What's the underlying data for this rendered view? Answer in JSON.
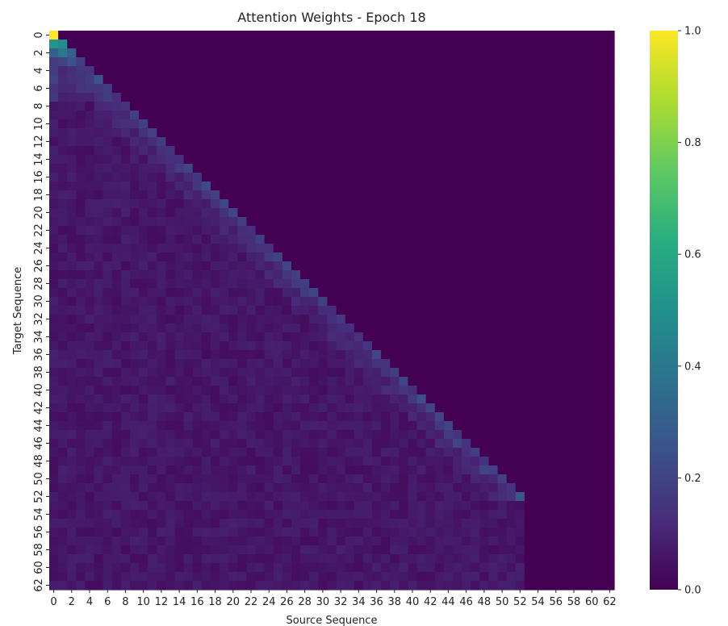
{
  "chart_data": {
    "type": "heatmap",
    "title": "Attention Weights - Epoch 18",
    "xlabel": "Source Sequence",
    "ylabel": "Target Sequence",
    "n_rows": 63,
    "n_cols": 63,
    "x_ticks": [
      "0",
      "2",
      "4",
      "6",
      "8",
      "10",
      "12",
      "14",
      "16",
      "18",
      "20",
      "22",
      "24",
      "26",
      "28",
      "30",
      "32",
      "34",
      "36",
      "38",
      "40",
      "42",
      "44",
      "46",
      "48",
      "50",
      "52",
      "54",
      "56",
      "58",
      "60",
      "62"
    ],
    "y_ticks": [
      "0",
      "2",
      "4",
      "6",
      "8",
      "10",
      "12",
      "14",
      "16",
      "18",
      "20",
      "22",
      "24",
      "26",
      "28",
      "30",
      "32",
      "34",
      "36",
      "38",
      "40",
      "42",
      "44",
      "46",
      "48",
      "50",
      "52",
      "54",
      "56",
      "58",
      "60",
      "62"
    ],
    "colorbar": {
      "range": [
        0.0,
        1.0
      ],
      "ticks": [
        "0.0",
        "0.2",
        "0.4",
        "0.6",
        "0.8",
        "1.0"
      ],
      "colormap": "viridis"
    },
    "structure": "lower-triangular (causal): cell (target i, source j) is non-zero only for j <= i up to row 52; rows 53-62 attend to source 0-52 only; all other cells are 0",
    "notable_values": [
      {
        "target": 0,
        "source": 0,
        "value": 1.0
      },
      {
        "target": 1,
        "source": 0,
        "value": 0.52
      },
      {
        "target": 1,
        "source": 1,
        "value": 0.48
      },
      {
        "target": 2,
        "source": 0,
        "value": 0.3
      },
      {
        "target": 2,
        "source": 1,
        "value": 0.4
      },
      {
        "target": 2,
        "source": 2,
        "value": 0.3
      },
      {
        "target": 3,
        "source": 2,
        "value": 0.25
      },
      {
        "target": 5,
        "source": 5,
        "value": 0.25
      },
      {
        "target": 17,
        "source": 17,
        "value": 0.22
      },
      {
        "target": 25,
        "source": 25,
        "value": 0.2
      },
      {
        "target": 41,
        "source": 41,
        "value": 0.24
      },
      {
        "target": 42,
        "source": 42,
        "value": 0.21
      },
      {
        "target": 46,
        "source": 45,
        "value": 0.2
      },
      {
        "target": 49,
        "source": 48,
        "value": 0.21
      },
      {
        "target": 52,
        "source": 52,
        "value": 0.27
      }
    ],
    "typical_values": {
      "lower_triangle_background": 0.06,
      "diagonal_band": 0.15,
      "upper_triangle": 0.0
    }
  }
}
